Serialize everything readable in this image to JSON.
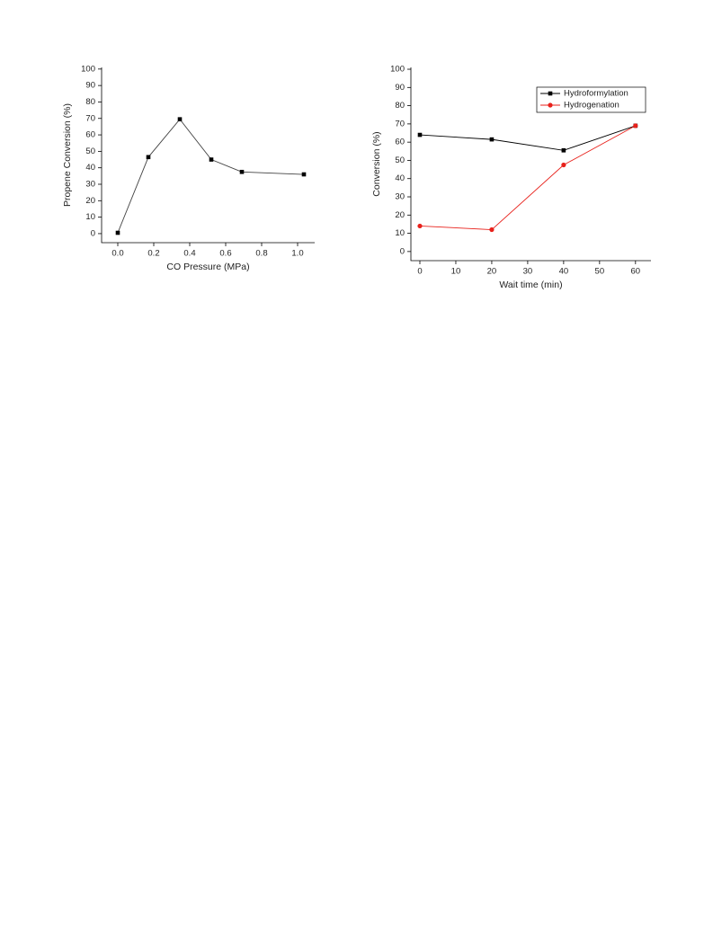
{
  "chart_data": [
    {
      "type": "line",
      "y_label": "Propene Conversion (%)",
      "x_label": "CO Pressure (MPa)",
      "x": [
        0.0,
        0.17,
        0.345,
        0.52,
        0.69,
        1.035
      ],
      "values": [
        0.5,
        46.5,
        69.5,
        45,
        37.5,
        36
      ],
      "color": "#444",
      "marker_color": "#000",
      "marker": "square",
      "xlim": [
        -0.09,
        1.095
      ],
      "ylim": [
        -5.5,
        101
      ],
      "xticks": [
        {
          "value": 0,
          "label": "0.0"
        },
        0.2,
        0.4,
        0.6,
        0.8,
        {
          "value": 1,
          "label": "1.0"
        }
      ],
      "yticks": [
        0,
        10,
        20,
        30,
        40,
        50,
        60,
        70,
        80,
        90,
        100
      ]
    },
    {
      "type": "line",
      "y_label": "Conversion (%)",
      "x_label": "Wait time (min)",
      "x": [
        0,
        20,
        40,
        60
      ],
      "series": [
        {
          "name": "Hydroformylation",
          "color": "#000",
          "marker": "square",
          "values": [
            64,
            61.5,
            55.5,
            69
          ]
        },
        {
          "name": "Hydrogenation",
          "color": "#e8211b",
          "marker": "circle",
          "values": [
            14,
            12,
            47.5,
            69
          ]
        }
      ],
      "legend": "top-right",
      "xlim": [
        -2.5,
        64.3
      ],
      "ylim": [
        -5,
        101
      ],
      "xticks": [
        0,
        10,
        20,
        30,
        40,
        50,
        60
      ],
      "yticks": [
        0,
        10,
        20,
        30,
        40,
        50,
        60,
        70,
        80,
        90,
        100
      ]
    }
  ]
}
